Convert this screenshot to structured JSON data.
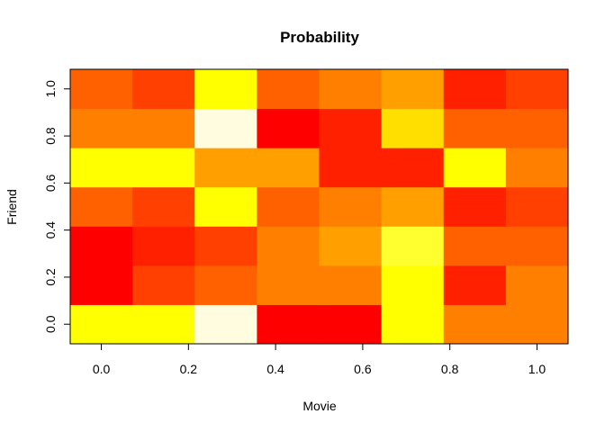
{
  "chart_data": {
    "type": "heatmap",
    "title": "Probability",
    "xlabel": "Movie",
    "ylabel": "Friend",
    "x_ticks": [
      "0.0",
      "0.2",
      "0.4",
      "0.6",
      "0.8",
      "1.0"
    ],
    "y_ticks": [
      "0.0",
      "0.2",
      "0.4",
      "0.6",
      "0.8",
      "1.0"
    ],
    "x_tick_values": [
      0.0,
      0.2,
      0.4,
      0.6,
      0.8,
      1.0
    ],
    "y_tick_values": [
      0.0,
      0.2,
      0.4,
      0.6,
      0.8,
      1.0
    ],
    "xlim": [
      -0.0714,
      1.0714
    ],
    "ylim": [
      -0.0833,
      1.0833
    ],
    "n_cols": 8,
    "n_rows": 7,
    "grid": false,
    "legend": "none",
    "palette": "heat.colors",
    "colors_by_row_bottom_to_top": [
      [
        "#FFFF00",
        "#FFFF00",
        "#FFFCE0",
        "#FF0000",
        "#FF0000",
        "#FFFF00",
        "#FF8000",
        "#FF8000"
      ],
      [
        "#FF0000",
        "#FF4000",
        "#FF6000",
        "#FF8000",
        "#FF8000",
        "#FFFF00",
        "#FF2000",
        "#FF8000"
      ],
      [
        "#FF0000",
        "#FF2000",
        "#FF4000",
        "#FF8000",
        "#FFA000",
        "#FFFF30",
        "#FF6000",
        "#FF6000"
      ],
      [
        "#FF6000",
        "#FF4000",
        "#FFFF00",
        "#FF6000",
        "#FF8000",
        "#FFA000",
        "#FF2000",
        "#FF4000"
      ],
      [
        "#FFFF00",
        "#FFFF00",
        "#FFA000",
        "#FFA000",
        "#FF2000",
        "#FF2000",
        "#FFFF00",
        "#FF8000"
      ],
      [
        "#FF8000",
        "#FF8000",
        "#FFFCE0",
        "#FF0000",
        "#FF2000",
        "#FFDF00",
        "#FF6000",
        "#FF6000"
      ],
      [
        "#FF6000",
        "#FF4000",
        "#FFFF00",
        "#FF6000",
        "#FF8000",
        "#FFA000",
        "#FF2000",
        "#FF4000"
      ]
    ]
  }
}
